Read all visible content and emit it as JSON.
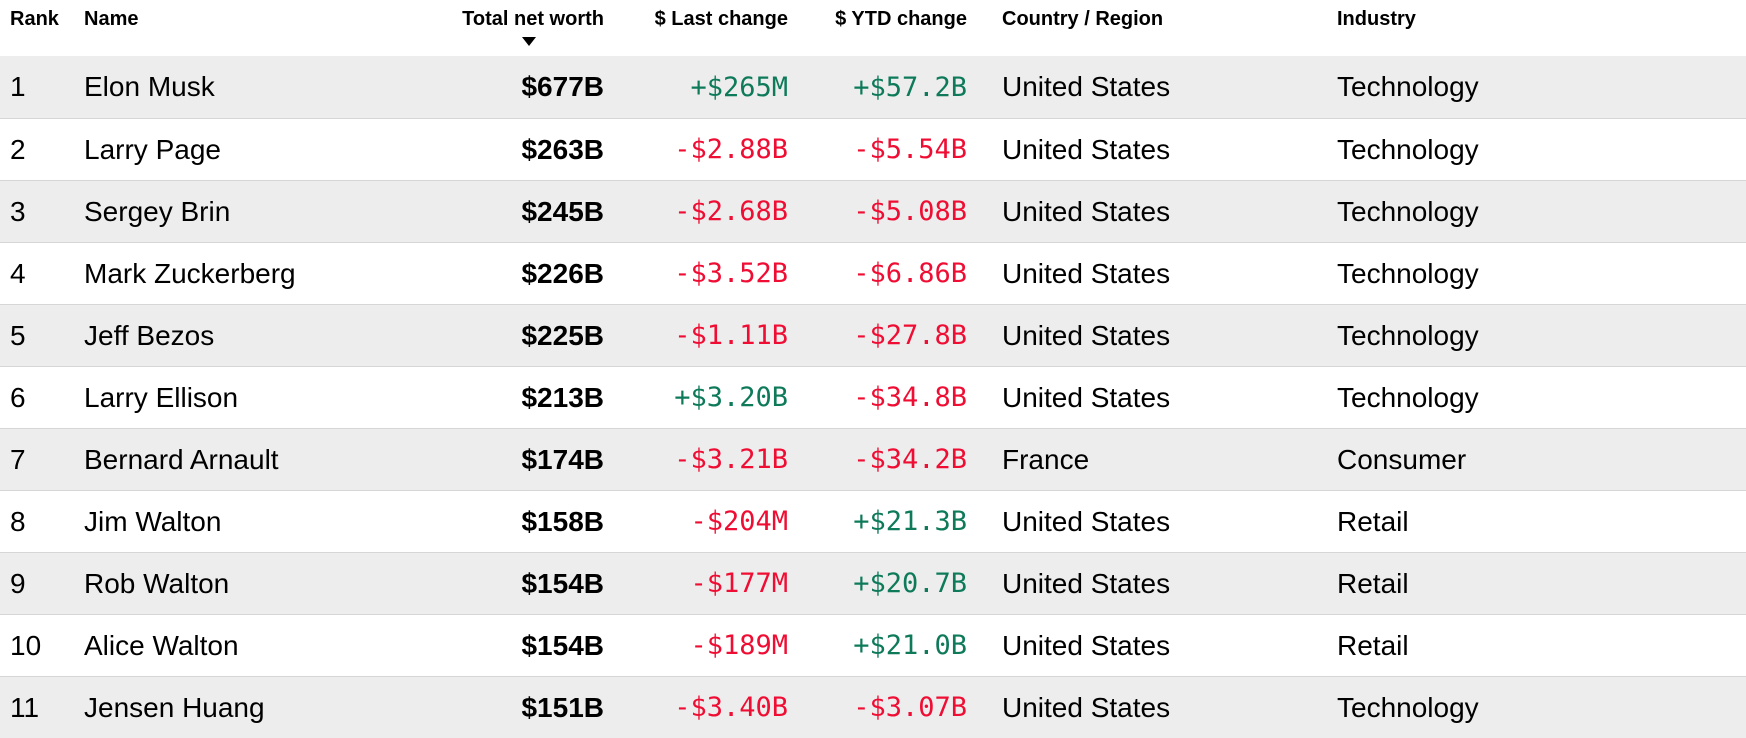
{
  "table": {
    "columns": [
      {
        "key": "rank",
        "label": "Rank",
        "align": "left",
        "sortable": true
      },
      {
        "key": "name",
        "label": "Name",
        "align": "left",
        "sortable": true
      },
      {
        "key": "net_worth",
        "label": "Total net worth",
        "align": "right",
        "sortable": true,
        "sorted": "desc",
        "sort_icon": "triangle-down"
      },
      {
        "key": "last_change",
        "label": "$ Last change",
        "align": "right",
        "sortable": true
      },
      {
        "key": "ytd_change",
        "label": "$ YTD change",
        "align": "right",
        "sortable": true
      },
      {
        "key": "country",
        "label": "Country / Region",
        "align": "left",
        "sortable": true
      },
      {
        "key": "industry",
        "label": "Industry",
        "align": "left",
        "sortable": true
      }
    ],
    "rows": [
      {
        "rank": "1",
        "name": "Elon Musk",
        "net_worth": "$677B",
        "last_change": "+$265M",
        "ytd_change": "+$57.2B",
        "country": "United States",
        "industry": "Technology"
      },
      {
        "rank": "2",
        "name": "Larry Page",
        "net_worth": "$263B",
        "last_change": "-$2.88B",
        "ytd_change": "-$5.54B",
        "country": "United States",
        "industry": "Technology"
      },
      {
        "rank": "3",
        "name": "Sergey Brin",
        "net_worth": "$245B",
        "last_change": "-$2.68B",
        "ytd_change": "-$5.08B",
        "country": "United States",
        "industry": "Technology"
      },
      {
        "rank": "4",
        "name": "Mark Zuckerberg",
        "net_worth": "$226B",
        "last_change": "-$3.52B",
        "ytd_change": "-$6.86B",
        "country": "United States",
        "industry": "Technology"
      },
      {
        "rank": "5",
        "name": "Jeff Bezos",
        "net_worth": "$225B",
        "last_change": "-$1.11B",
        "ytd_change": "-$27.8B",
        "country": "United States",
        "industry": "Technology"
      },
      {
        "rank": "6",
        "name": "Larry Ellison",
        "net_worth": "$213B",
        "last_change": "+$3.20B",
        "ytd_change": "-$34.8B",
        "country": "United States",
        "industry": "Technology"
      },
      {
        "rank": "7",
        "name": "Bernard Arnault",
        "net_worth": "$174B",
        "last_change": "-$3.21B",
        "ytd_change": "-$34.2B",
        "country": "France",
        "industry": "Consumer"
      },
      {
        "rank": "8",
        "name": "Jim Walton",
        "net_worth": "$158B",
        "last_change": "-$204M",
        "ytd_change": "+$21.3B",
        "country": "United States",
        "industry": "Retail"
      },
      {
        "rank": "9",
        "name": "Rob Walton",
        "net_worth": "$154B",
        "last_change": "-$177M",
        "ytd_change": "+$20.7B",
        "country": "United States",
        "industry": "Retail"
      },
      {
        "rank": "10",
        "name": "Alice Walton",
        "net_worth": "$154B",
        "last_change": "-$189M",
        "ytd_change": "+$21.0B",
        "country": "United States",
        "industry": "Retail"
      },
      {
        "rank": "11",
        "name": "Jensen Huang",
        "net_worth": "$151B",
        "last_change": "-$3.40B",
        "ytd_change": "-$3.07B",
        "country": "United States",
        "industry": "Technology"
      }
    ]
  },
  "colors": {
    "positive": "#0e7a5a",
    "negative": "#ef0d33",
    "row_alt_background": "#ededed",
    "row_divider": "#d6d6d6",
    "text": "#000000"
  }
}
